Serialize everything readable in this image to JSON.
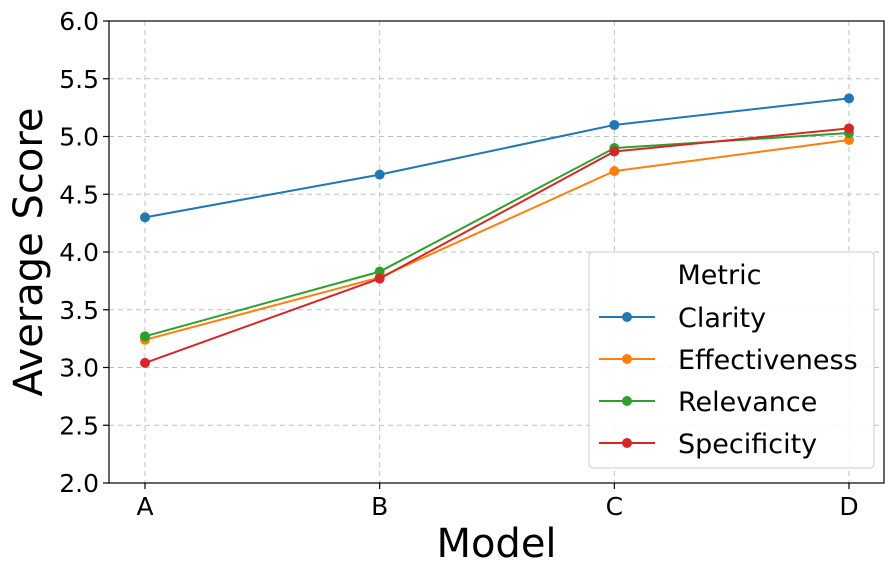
{
  "chart_data": {
    "type": "line",
    "title": "",
    "xlabel": "Model",
    "ylabel": "Average Score",
    "categories": [
      "A",
      "B",
      "C",
      "D"
    ],
    "ylim": [
      2.0,
      6.0
    ],
    "yticks": [
      "2.0",
      "2.5",
      "3.0",
      "3.5",
      "4.0",
      "4.5",
      "5.0",
      "5.5",
      "6.0"
    ],
    "grid": true,
    "legend": {
      "title": "Metric",
      "placement": "lower-right"
    },
    "series": [
      {
        "name": "Clarity",
        "color": "#1f77b4",
        "values": [
          4.3,
          4.67,
          5.1,
          5.33
        ]
      },
      {
        "name": "Effectiveness",
        "color": "#ff7f0e",
        "values": [
          3.24,
          3.78,
          4.7,
          4.97
        ]
      },
      {
        "name": "Relevance",
        "color": "#2ca02c",
        "values": [
          3.27,
          3.83,
          4.9,
          5.03
        ]
      },
      {
        "name": "Specificity",
        "color": "#d62728",
        "values": [
          3.04,
          3.77,
          4.87,
          5.07
        ]
      }
    ]
  }
}
